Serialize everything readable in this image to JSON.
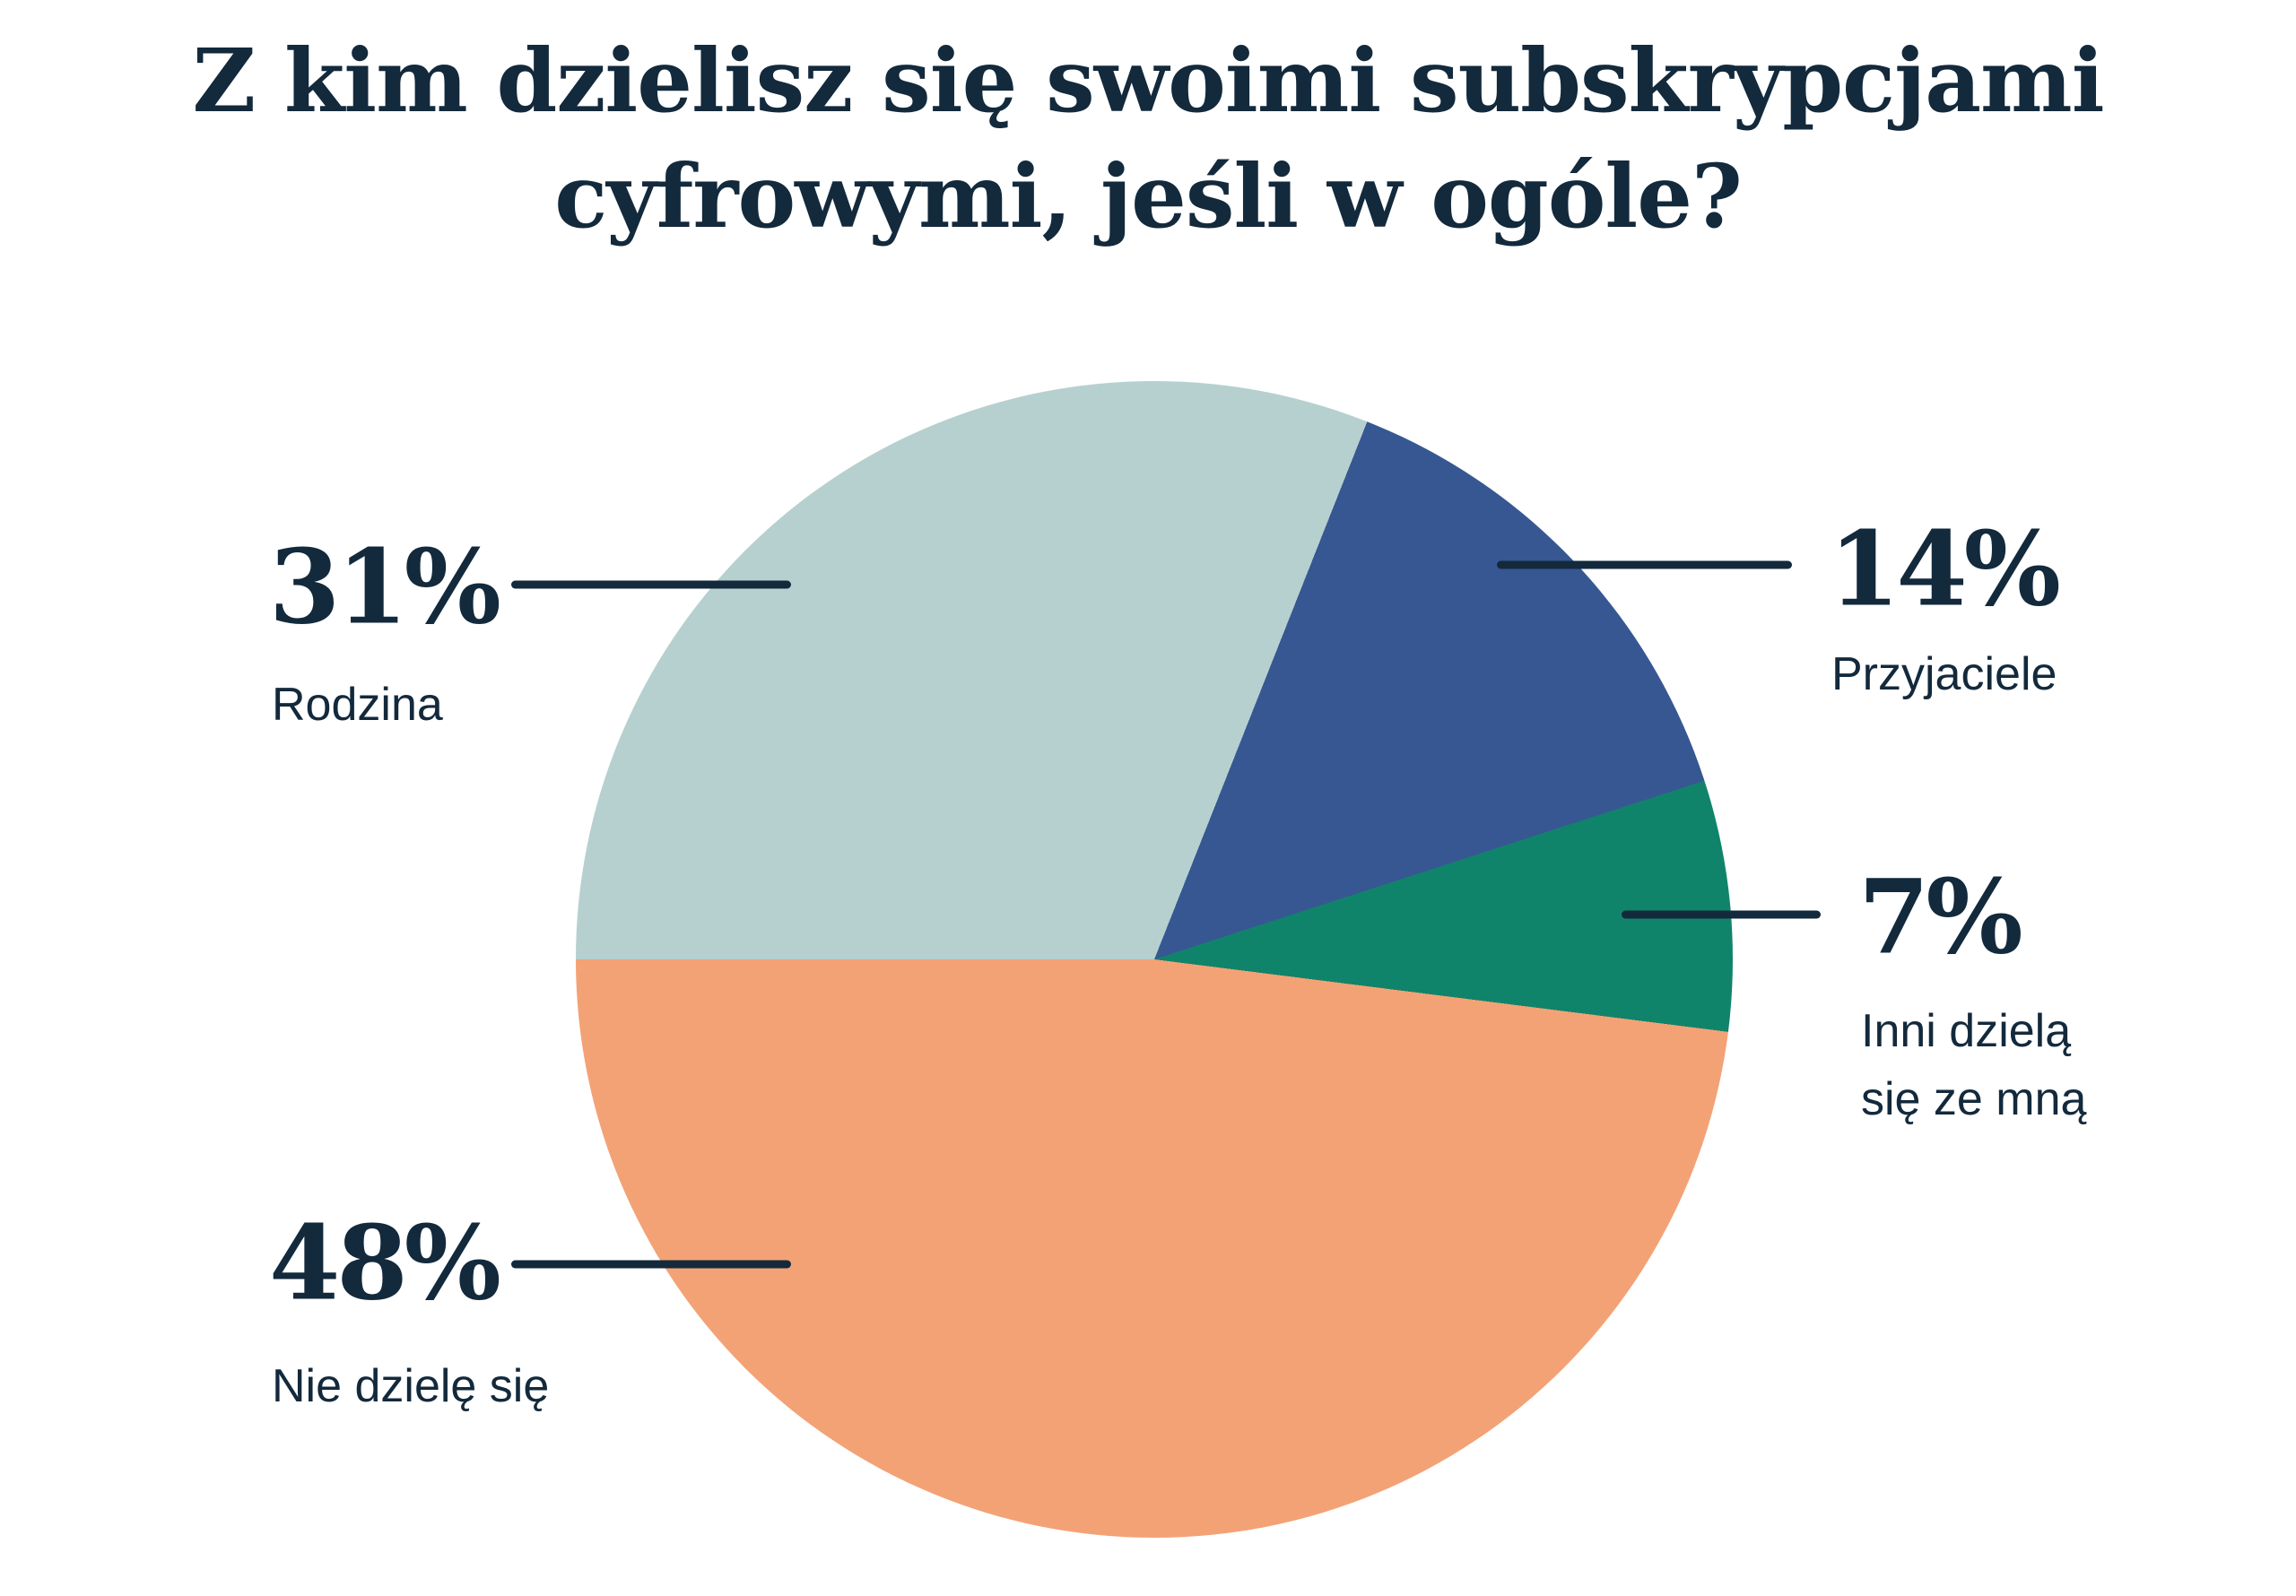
{
  "title": {
    "text": "Z kim dzielisz się swoimi subskrypcjami cyfrowymi, jeśli w ogóle?",
    "lines": [
      "Z kim dzielisz się swoimi subskrypcjami",
      "cyfrowymi, jeśli w ogóle?"
    ]
  },
  "colors": {
    "background": "#ffffff",
    "ink": "#13293c",
    "slice_family": "#b6d0cf",
    "slice_friends": "#375792",
    "slice_others_share": "#10846b",
    "slice_no_share": "#f3a276"
  },
  "chart_data": {
    "type": "pie",
    "title": "Z kim dzielisz się swoimi subskrypcjami cyfrowymi, jeśli w ogóle?",
    "start_angle_deg": 270,
    "direction": "clockwise",
    "legend_position": "callout-labels",
    "grid": false,
    "slices": [
      {
        "label": "Rodzina",
        "label_lines": [
          "Rodzina"
        ],
        "percent_label": "31%",
        "value": 31,
        "color": "#b6d0cf"
      },
      {
        "label": "Przyjaciele",
        "label_lines": [
          "Przyjaciele"
        ],
        "percent_label": "14%",
        "value": 14,
        "color": "#375792"
      },
      {
        "label": "Inni dzielą się ze mną",
        "label_lines": [
          "Inni dzielą",
          "się ze mną"
        ],
        "percent_label": "7%",
        "value": 7,
        "color": "#10846b"
      },
      {
        "label": "Nie dzielę się",
        "label_lines": [
          "Nie dzielę się"
        ],
        "percent_label": "48%",
        "value": 48,
        "color": "#f3a276"
      }
    ]
  }
}
